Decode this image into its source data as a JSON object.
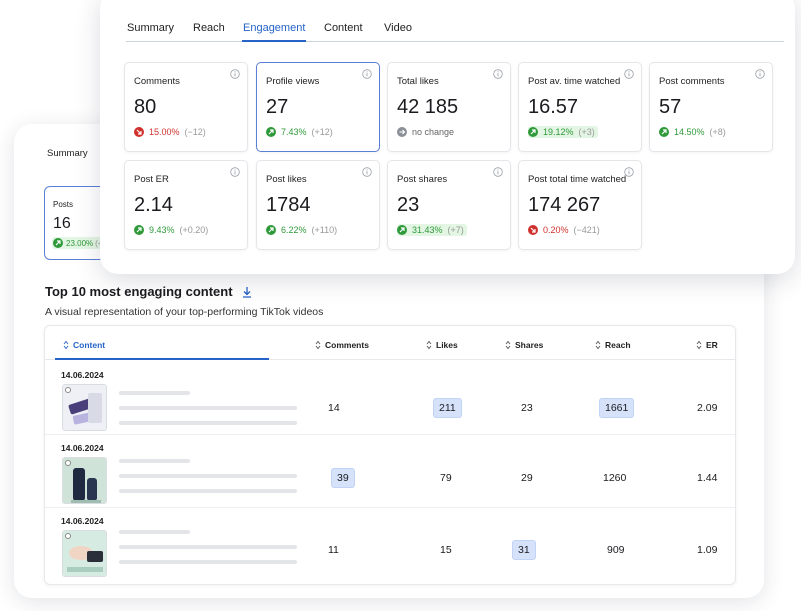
{
  "colors": {
    "accent": "#2563c9",
    "up": "#2f9a3a",
    "down": "#d0312d",
    "flat": "#8a8f98"
  },
  "back": {
    "tab_label": "Summary",
    "posts_card": {
      "label": "Posts",
      "value": "16",
      "change": "23.00%",
      "rest": "(+"
    },
    "top10": {
      "title": "Top 10 most engaging content",
      "subtitle": "A visual representation of your top-performing TikTok videos",
      "columns": [
        "Content",
        "Comments",
        "Likes",
        "Shares",
        "Reach",
        "ER"
      ],
      "rows": [
        {
          "date": "14.06.2024",
          "comments": "14",
          "likes": "211",
          "shares": "23",
          "reach": "1661",
          "er": "2.09"
        },
        {
          "date": "14.06.2024",
          "comments": "39",
          "likes": "79",
          "shares": "29",
          "reach": "1260",
          "er": "1.44"
        },
        {
          "date": "14.06.2024",
          "comments": "11",
          "likes": "15",
          "shares": "31",
          "reach": "909",
          "er": "1.09"
        }
      ]
    }
  },
  "front": {
    "tabs": [
      "Summary",
      "Reach",
      "Engagement",
      "Content",
      "Video"
    ],
    "active_tab": "Engagement",
    "cards": [
      {
        "label": "Comments",
        "value": "80",
        "trend": "down",
        "pct": "15.00%",
        "delta": "(−12)"
      },
      {
        "label": "Profile views",
        "value": "27",
        "trend": "up",
        "pct": "7.43%",
        "delta": "(+12)"
      },
      {
        "label": "Total likes",
        "value": "42 185",
        "trend": "flat",
        "pct": "no change",
        "delta": ""
      },
      {
        "label": "Post av. time watched",
        "value": "16.57",
        "trend": "up",
        "pct": "19.12%",
        "delta": "(+3)"
      },
      {
        "label": "Post comments",
        "value": "57",
        "trend": "up",
        "pct": "14.50%",
        "delta": "(+8)"
      },
      {
        "label": "Post ER",
        "value": "2.14",
        "trend": "up",
        "pct": "9.43%",
        "delta": "(+0.20)"
      },
      {
        "label": "Post likes",
        "value": "1784",
        "trend": "up",
        "pct": "6.22%",
        "delta": "(+110)"
      },
      {
        "label": "Post shares",
        "value": "23",
        "trend": "up",
        "pct": "31.43%",
        "delta": "(+7)"
      },
      {
        "label": "Post total time watched",
        "value": "174 267",
        "trend": "down",
        "pct": "0.20%",
        "delta": "(−421)"
      }
    ]
  }
}
